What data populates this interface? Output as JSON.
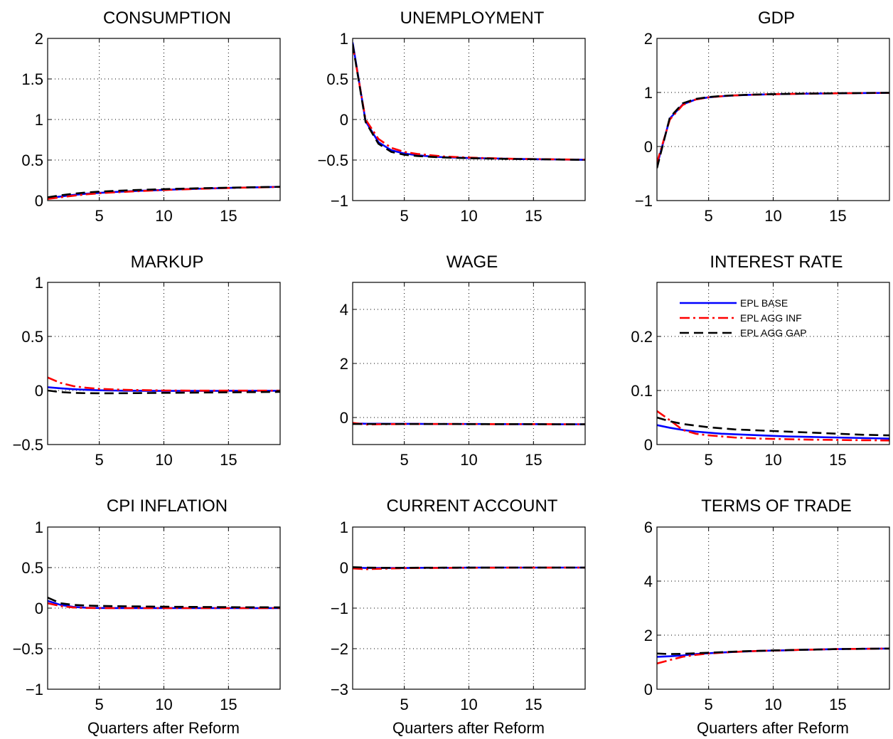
{
  "colors": {
    "base": "#0000ff",
    "agg_inf": "#ff0000",
    "agg_gap": "#000000"
  },
  "chart_data": [
    {
      "type": "line",
      "title": "CONSUMPTION",
      "xlabel": "",
      "xlim": [
        1,
        19
      ],
      "ylim": [
        0,
        2
      ],
      "xticks": [
        5,
        10,
        15
      ],
      "yticks": [
        0,
        0.5,
        1,
        1.5,
        2
      ],
      "xtick_labels": [
        "5",
        "10",
        "15"
      ],
      "ytick_labels": [
        "0",
        "0.5",
        "1",
        "1.5",
        "2"
      ],
      "grid": true,
      "x": [
        1,
        2,
        3,
        4,
        5,
        6,
        7,
        8,
        9,
        10,
        11,
        12,
        13,
        14,
        15,
        16,
        17,
        18,
        19
      ],
      "series": [
        {
          "key": "base",
          "style": "solid",
          "values": [
            0.03,
            0.05,
            0.07,
            0.085,
            0.095,
            0.105,
            0.112,
            0.12,
            0.126,
            0.132,
            0.138,
            0.143,
            0.148,
            0.152,
            0.156,
            0.16,
            0.163,
            0.166,
            0.17
          ]
        },
        {
          "key": "agg_inf",
          "style": "dashdot",
          "values": [
            0.02,
            0.04,
            0.06,
            0.077,
            0.09,
            0.1,
            0.108,
            0.116,
            0.123,
            0.13,
            0.136,
            0.141,
            0.146,
            0.151,
            0.155,
            0.159,
            0.162,
            0.165,
            0.168
          ]
        },
        {
          "key": "agg_gap",
          "style": "dashed",
          "values": [
            0.04,
            0.065,
            0.085,
            0.1,
            0.11,
            0.118,
            0.125,
            0.131,
            0.136,
            0.141,
            0.145,
            0.149,
            0.153,
            0.156,
            0.159,
            0.162,
            0.165,
            0.167,
            0.17
          ]
        }
      ]
    },
    {
      "type": "line",
      "title": "UNEMPLOYMENT",
      "xlabel": "",
      "xlim": [
        1,
        19
      ],
      "ylim": [
        -1,
        1
      ],
      "xticks": [
        5,
        10,
        15
      ],
      "yticks": [
        -1,
        -0.5,
        0,
        0.5,
        1
      ],
      "xtick_labels": [
        "5",
        "10",
        "15"
      ],
      "ytick_labels": [
        "−1",
        "−0.5",
        "0",
        "0.5",
        "1"
      ],
      "grid": true,
      "x": [
        1,
        2,
        3,
        4,
        5,
        6,
        7,
        8,
        9,
        10,
        11,
        12,
        13,
        14,
        15,
        16,
        17,
        18,
        19
      ],
      "series": [
        {
          "key": "base",
          "style": "solid",
          "values": [
            0.95,
            -0.02,
            -0.28,
            -0.38,
            -0.42,
            -0.44,
            -0.455,
            -0.465,
            -0.47,
            -0.475,
            -0.478,
            -0.481,
            -0.484,
            -0.487,
            -0.489,
            -0.491,
            -0.493,
            -0.495,
            -0.497
          ]
        },
        {
          "key": "agg_inf",
          "style": "dashdot",
          "values": [
            0.92,
            0.0,
            -0.24,
            -0.35,
            -0.4,
            -0.425,
            -0.44,
            -0.455,
            -0.463,
            -0.47,
            -0.475,
            -0.479,
            -0.483,
            -0.486,
            -0.488,
            -0.49,
            -0.492,
            -0.494,
            -0.496
          ]
        },
        {
          "key": "agg_gap",
          "style": "dashed",
          "values": [
            0.93,
            -0.03,
            -0.3,
            -0.4,
            -0.435,
            -0.45,
            -0.46,
            -0.468,
            -0.473,
            -0.477,
            -0.48,
            -0.483,
            -0.486,
            -0.488,
            -0.49,
            -0.492,
            -0.494,
            -0.496,
            -0.498
          ]
        }
      ]
    },
    {
      "type": "line",
      "title": "GDP",
      "xlabel": "",
      "xlim": [
        1,
        19
      ],
      "ylim": [
        -1,
        2
      ],
      "xticks": [
        5,
        10,
        15
      ],
      "yticks": [
        -1,
        0,
        1,
        2
      ],
      "xtick_labels": [
        "5",
        "10",
        "15"
      ],
      "ytick_labels": [
        "−1",
        "0",
        "1",
        "2"
      ],
      "grid": true,
      "x": [
        1,
        2,
        3,
        4,
        5,
        6,
        7,
        8,
        9,
        10,
        11,
        12,
        13,
        14,
        15,
        16,
        17,
        18,
        19
      ],
      "series": [
        {
          "key": "base",
          "style": "solid",
          "values": [
            -0.35,
            0.52,
            0.78,
            0.87,
            0.91,
            0.93,
            0.945,
            0.955,
            0.962,
            0.968,
            0.972,
            0.976,
            0.979,
            0.982,
            0.985,
            0.987,
            0.989,
            0.991,
            0.993
          ]
        },
        {
          "key": "agg_inf",
          "style": "dashdot",
          "values": [
            -0.3,
            0.5,
            0.77,
            0.87,
            0.91,
            0.93,
            0.945,
            0.955,
            0.962,
            0.968,
            0.972,
            0.976,
            0.979,
            0.982,
            0.985,
            0.987,
            0.989,
            0.991,
            0.993
          ]
        },
        {
          "key": "agg_gap",
          "style": "dashed",
          "values": [
            -0.4,
            0.54,
            0.8,
            0.88,
            0.915,
            0.935,
            0.948,
            0.957,
            0.964,
            0.969,
            0.973,
            0.977,
            0.98,
            0.983,
            0.986,
            0.988,
            0.99,
            0.992,
            0.994
          ]
        }
      ]
    },
    {
      "type": "line",
      "title": "MARKUP",
      "xlabel": "",
      "xlim": [
        1,
        19
      ],
      "ylim": [
        -0.5,
        1
      ],
      "xticks": [
        5,
        10,
        15
      ],
      "yticks": [
        -0.5,
        0,
        0.5,
        1
      ],
      "xtick_labels": [
        "5",
        "10",
        "15"
      ],
      "ytick_labels": [
        "−0.5",
        "0",
        "0.5",
        "1"
      ],
      "grid": true,
      "x": [
        1,
        2,
        3,
        4,
        5,
        6,
        7,
        8,
        9,
        10,
        11,
        12,
        13,
        14,
        15,
        16,
        17,
        18,
        19
      ],
      "series": [
        {
          "key": "base",
          "style": "solid",
          "values": [
            0.03,
            0.02,
            0.012,
            0.006,
            0.002,
            0.0,
            -0.002,
            -0.003,
            -0.004,
            -0.004,
            -0.004,
            -0.004,
            -0.004,
            -0.004,
            -0.003,
            -0.003,
            -0.003,
            -0.003,
            -0.003
          ]
        },
        {
          "key": "agg_inf",
          "style": "dashdot",
          "values": [
            0.12,
            0.07,
            0.04,
            0.025,
            0.015,
            0.01,
            0.006,
            0.004,
            0.002,
            0.0,
            0.0,
            -0.001,
            -0.001,
            -0.001,
            -0.001,
            -0.001,
            -0.001,
            -0.001,
            -0.001
          ]
        },
        {
          "key": "agg_gap",
          "style": "dashed",
          "values": [
            0.0,
            -0.015,
            -0.022,
            -0.025,
            -0.026,
            -0.026,
            -0.025,
            -0.024,
            -0.023,
            -0.022,
            -0.021,
            -0.02,
            -0.019,
            -0.018,
            -0.017,
            -0.016,
            -0.015,
            -0.014,
            -0.013
          ]
        }
      ]
    },
    {
      "type": "line",
      "title": "WAGE",
      "xlabel": "",
      "xlim": [
        1,
        19
      ],
      "ylim": [
        -1,
        5
      ],
      "xticks": [
        5,
        10,
        15
      ],
      "yticks": [
        0,
        2,
        4
      ],
      "xtick_labels": [
        "5",
        "10",
        "15"
      ],
      "ytick_labels": [
        "0",
        "2",
        "4"
      ],
      "grid": true,
      "x": [
        1,
        2,
        3,
        4,
        5,
        6,
        7,
        8,
        9,
        10,
        11,
        12,
        13,
        14,
        15,
        16,
        17,
        18,
        19
      ],
      "series": [
        {
          "key": "base",
          "style": "solid",
          "values": [
            -0.22,
            -0.23,
            -0.23,
            -0.235,
            -0.235,
            -0.235,
            -0.24,
            -0.24,
            -0.24,
            -0.24,
            -0.24,
            -0.245,
            -0.245,
            -0.245,
            -0.245,
            -0.245,
            -0.25,
            -0.25,
            -0.25
          ]
        },
        {
          "key": "agg_inf",
          "style": "dashdot",
          "values": [
            -0.2,
            -0.26,
            -0.25,
            -0.245,
            -0.24,
            -0.24,
            -0.24,
            -0.24,
            -0.24,
            -0.24,
            -0.245,
            -0.245,
            -0.245,
            -0.245,
            -0.245,
            -0.245,
            -0.25,
            -0.25,
            -0.25
          ]
        },
        {
          "key": "agg_gap",
          "style": "dashed",
          "values": [
            -0.24,
            -0.24,
            -0.24,
            -0.24,
            -0.24,
            -0.24,
            -0.24,
            -0.24,
            -0.24,
            -0.245,
            -0.245,
            -0.245,
            -0.245,
            -0.245,
            -0.245,
            -0.25,
            -0.25,
            -0.25,
            -0.25
          ]
        }
      ]
    },
    {
      "type": "line",
      "title": "INTEREST RATE",
      "xlabel": "",
      "xlim": [
        1,
        19
      ],
      "ylim": [
        0,
        0.3
      ],
      "xticks": [
        5,
        10,
        15
      ],
      "yticks": [
        0,
        0.1,
        0.2
      ],
      "xtick_labels": [
        "5",
        "10",
        "15"
      ],
      "ytick_labels": [
        "0",
        "0.1",
        "0.2"
      ],
      "grid": true,
      "legend": {
        "position": "top-left",
        "entries": [
          "EPL BASE",
          "EPL AGG INF",
          "EPL AGG GAP"
        ]
      },
      "x": [
        1,
        2,
        3,
        4,
        5,
        6,
        7,
        8,
        9,
        10,
        11,
        12,
        13,
        14,
        15,
        16,
        17,
        18,
        19
      ],
      "series": [
        {
          "key": "base",
          "name": "EPL BASE",
          "style": "solid",
          "values": [
            0.036,
            0.031,
            0.027,
            0.024,
            0.022,
            0.02,
            0.019,
            0.018,
            0.017,
            0.016,
            0.015,
            0.0145,
            0.014,
            0.0135,
            0.013,
            0.0125,
            0.012,
            0.0115,
            0.011
          ]
        },
        {
          "key": "agg_inf",
          "name": "EPL AGG INF",
          "style": "dashdot",
          "values": [
            0.062,
            0.045,
            0.027,
            0.02,
            0.017,
            0.015,
            0.013,
            0.012,
            0.011,
            0.0105,
            0.01,
            0.0095,
            0.009,
            0.0088,
            0.0085,
            0.0082,
            0.008,
            0.0078,
            0.0075
          ]
        },
        {
          "key": "agg_gap",
          "name": "EPL AGG GAP",
          "style": "dashed",
          "values": [
            0.05,
            0.043,
            0.038,
            0.035,
            0.032,
            0.03,
            0.028,
            0.027,
            0.026,
            0.025,
            0.024,
            0.023,
            0.022,
            0.021,
            0.02,
            0.019,
            0.018,
            0.0175,
            0.017
          ]
        }
      ]
    },
    {
      "type": "line",
      "title": "CPI INFLATION",
      "xlabel": "Quarters after Reform",
      "xlim": [
        1,
        19
      ],
      "ylim": [
        -1,
        1
      ],
      "xticks": [
        5,
        10,
        15
      ],
      "yticks": [
        -1,
        -0.5,
        0,
        0.5,
        1
      ],
      "xtick_labels": [
        "5",
        "10",
        "15"
      ],
      "ytick_labels": [
        "−1",
        "−0.5",
        "0",
        "0.5",
        "1"
      ],
      "grid": true,
      "x": [
        1,
        2,
        3,
        4,
        5,
        6,
        7,
        8,
        9,
        10,
        11,
        12,
        13,
        14,
        15,
        16,
        17,
        18,
        19
      ],
      "series": [
        {
          "key": "base",
          "style": "solid",
          "values": [
            0.09,
            0.04,
            0.015,
            0.005,
            0.002,
            0.001,
            0.001,
            0.001,
            0.001,
            0.001,
            0.001,
            0.001,
            0.001,
            0.001,
            0.001,
            0.001,
            0.001,
            0.001,
            0.001
          ]
        },
        {
          "key": "agg_inf",
          "style": "dashdot",
          "values": [
            0.06,
            0.025,
            0.008,
            0.002,
            0.0,
            0.0,
            0.0,
            0.0,
            0.0,
            0.0,
            0.0,
            0.0,
            0.0,
            0.0,
            0.0,
            0.0,
            0.0,
            0.0,
            0.0
          ]
        },
        {
          "key": "agg_gap",
          "style": "dashed",
          "values": [
            0.13,
            0.06,
            0.04,
            0.032,
            0.028,
            0.025,
            0.023,
            0.021,
            0.019,
            0.018,
            0.016,
            0.015,
            0.014,
            0.013,
            0.012,
            0.011,
            0.01,
            0.01,
            0.009
          ]
        }
      ]
    },
    {
      "type": "line",
      "title": "CURRENT ACCOUNT",
      "xlabel": "Quarters after Reform",
      "xlim": [
        1,
        19
      ],
      "ylim": [
        -3,
        1
      ],
      "xticks": [
        5,
        10,
        15
      ],
      "yticks": [
        -3,
        -2,
        -1,
        0,
        1
      ],
      "xtick_labels": [
        "5",
        "10",
        "15"
      ],
      "ytick_labels": [
        "−3",
        "−2",
        "−1",
        "0",
        "1"
      ],
      "grid": true,
      "x": [
        1,
        2,
        3,
        4,
        5,
        6,
        7,
        8,
        9,
        10,
        11,
        12,
        13,
        14,
        15,
        16,
        17,
        18,
        19
      ],
      "series": [
        {
          "key": "base",
          "style": "solid",
          "values": [
            0.0,
            -0.01,
            -0.01,
            -0.01,
            -0.01,
            -0.005,
            -0.005,
            -0.005,
            -0.005,
            0.0,
            0.0,
            0.0,
            0.0,
            0.0,
            0.0,
            0.0,
            0.0,
            0.0,
            0.0
          ]
        },
        {
          "key": "agg_inf",
          "style": "dashdot",
          "values": [
            -0.02,
            -0.04,
            -0.03,
            -0.02,
            -0.015,
            -0.01,
            -0.01,
            -0.008,
            -0.006,
            -0.005,
            -0.004,
            -0.003,
            -0.002,
            -0.002,
            -0.001,
            -0.001,
            0.0,
            0.0,
            0.0
          ]
        },
        {
          "key": "agg_gap",
          "style": "dashed",
          "values": [
            0.01,
            0.0,
            -0.005,
            -0.005,
            -0.005,
            -0.004,
            -0.003,
            -0.002,
            -0.002,
            -0.001,
            -0.001,
            0.0,
            0.0,
            0.0,
            0.0,
            0.0,
            0.0,
            0.0,
            0.0
          ]
        }
      ]
    },
    {
      "type": "line",
      "title": "TERMS OF TRADE",
      "xlabel": "Quarters after Reform",
      "xlim": [
        1,
        19
      ],
      "ylim": [
        0,
        6
      ],
      "xticks": [
        5,
        10,
        15
      ],
      "yticks": [
        0,
        2,
        4,
        6
      ],
      "xtick_labels": [
        "5",
        "10",
        "15"
      ],
      "ytick_labels": [
        "0",
        "2",
        "4",
        "6"
      ],
      "grid": true,
      "x": [
        1,
        2,
        3,
        4,
        5,
        6,
        7,
        8,
        9,
        10,
        11,
        12,
        13,
        14,
        15,
        16,
        17,
        18,
        19
      ],
      "series": [
        {
          "key": "base",
          "style": "solid",
          "values": [
            1.2,
            1.22,
            1.25,
            1.3,
            1.33,
            1.36,
            1.38,
            1.4,
            1.42,
            1.43,
            1.44,
            1.455,
            1.465,
            1.475,
            1.485,
            1.49,
            1.495,
            1.5,
            1.505
          ]
        },
        {
          "key": "agg_inf",
          "style": "dashdot",
          "values": [
            0.95,
            1.08,
            1.2,
            1.27,
            1.32,
            1.35,
            1.38,
            1.4,
            1.42,
            1.43,
            1.44,
            1.455,
            1.465,
            1.475,
            1.485,
            1.49,
            1.495,
            1.5,
            1.505
          ]
        },
        {
          "key": "agg_gap",
          "style": "dashed",
          "values": [
            1.32,
            1.3,
            1.31,
            1.33,
            1.35,
            1.37,
            1.39,
            1.41,
            1.42,
            1.435,
            1.445,
            1.455,
            1.465,
            1.475,
            1.485,
            1.49,
            1.495,
            1.5,
            1.505
          ]
        }
      ]
    }
  ]
}
